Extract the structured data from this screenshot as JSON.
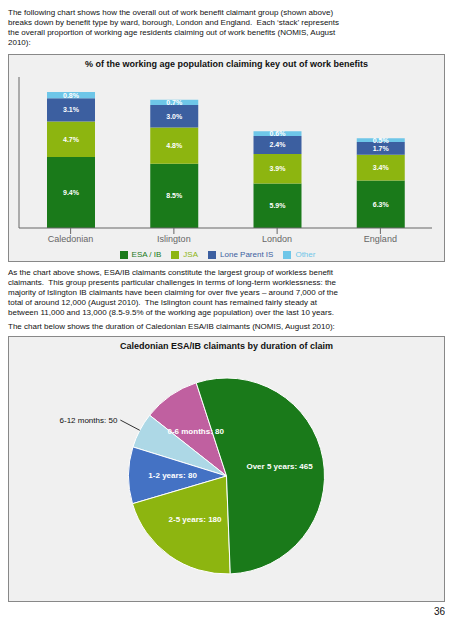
{
  "annotations": [
    "The following chart shows how the overall out of work benefit claimant group (shown above)\nbreaks down by benefit type by ward, borough, London and England.  Each ‘stack’ represents\nthe overall proportion of working age residents claiming out of work benefits (NOMIS, August\n2010):",
    "As the chart above shows, ESA/IB claimants constitute the largest group of workless benefit\nclaimants.  This group presents particular challenges in terms of long-term worklessness: the\nmajority of Islington IB claimants have been claiming for over five years – around 7,000 of the\ntotal of around 12,000 (August 2010).  The Islington count has remained fairly steady at\nbetween 11,000 and 13,000 (8.5-9.5% of the working age population) over the last 10 years.",
    "The chart below shows the duration of Caledonian ESA/IB claimants (NOMIS, August 2010):",
    "36"
  ],
  "chart_data": [
    {
      "type": "bar",
      "title": "% of the working age population claiming key out of work benefits",
      "categories": [
        "Caledonian",
        "Islington",
        "London",
        "England"
      ],
      "series": [
        {
          "name": "ESA / IB",
          "color": "#1a7a1a",
          "values": [
            9.4,
            8.5,
            5.9,
            6.3
          ],
          "value_labels": [
            "9.4%",
            "8.5%",
            "5.9%",
            "6.3%"
          ]
        },
        {
          "name": "JSA",
          "color": "#8db510",
          "values": [
            4.7,
            4.8,
            3.9,
            3.4
          ],
          "value_labels": [
            "4.7%",
            "4.8%",
            "3.9%",
            "3.4%"
          ]
        },
        {
          "name": "Lone Parent IS",
          "color": "#3c5fa0",
          "values": [
            3.1,
            3.0,
            2.4,
            1.7
          ],
          "value_labels": [
            "3.1%",
            "3.0%",
            "2.4%",
            "1.7%"
          ]
        },
        {
          "name": "Other",
          "color": "#6ec6e8",
          "values": [
            0.8,
            0.7,
            0.6,
            0.5
          ],
          "value_labels": [
            "0.8%",
            "0.7%",
            "0.6%",
            "0.5%"
          ]
        }
      ],
      "ylim": [
        0,
        20
      ],
      "stacked": true,
      "data_labels": true,
      "tick_labels": "x",
      "legend": "bottom",
      "grid": false
    },
    {
      "type": "pie",
      "title": "Caledonian ESA/IB claimants by duration of claim",
      "categories": [
        "0-6 months",
        "6-12 months",
        "1-2 years",
        "2-5 years",
        "Over 5 years"
      ],
      "values": [
        80,
        50,
        80,
        180,
        465
      ],
      "value_labels": [
        "0-6 months: 80",
        "6-12 months: 50",
        "1-2 years: 80",
        "2-5 years: 180",
        "Over 5 years: 465"
      ],
      "colors": [
        "#c060a0",
        "#add8e6",
        "#4472c4",
        "#8db510",
        "#1a7a1a"
      ],
      "data_labels": true
    }
  ]
}
